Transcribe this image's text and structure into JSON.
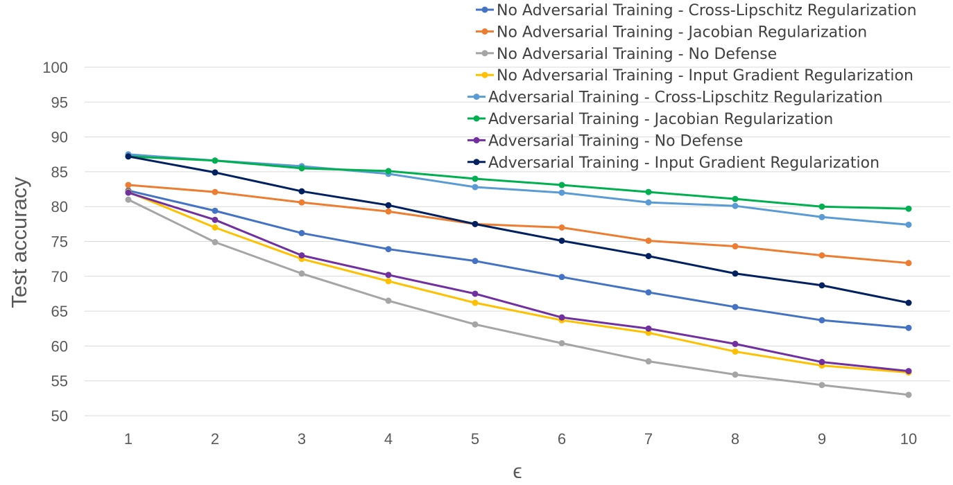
{
  "chart_data": {
    "type": "line",
    "title": "",
    "xlabel": "ϵ",
    "ylabel": "Test accuracy",
    "categories": [
      "1",
      "2",
      "3",
      "4",
      "5",
      "6",
      "7",
      "8",
      "9",
      "10"
    ],
    "y_ticks": [
      "50",
      "55",
      "60",
      "65",
      "70",
      "75",
      "80",
      "85",
      "90",
      "95",
      "100"
    ],
    "ylim": [
      50,
      100
    ],
    "grid": true,
    "legend_position": "top-right",
    "series": [
      {
        "name": "No Adversarial Training - Cross-Lipschitz Regularization",
        "color": "#4472c4",
        "values": [
          82.3,
          79.4,
          76.2,
          73.9,
          72.2,
          69.9,
          67.7,
          65.6,
          63.7,
          62.6
        ]
      },
      {
        "name": "No Adversarial Training - Jacobian Regularization",
        "color": "#ed7d31",
        "values": [
          83.1,
          82.1,
          80.6,
          79.3,
          77.5,
          77.0,
          75.1,
          74.3,
          73.0,
          71.9
        ]
      },
      {
        "name": "No Adversarial Training - No Defense",
        "color": "#a5a5a5",
        "values": [
          81.0,
          74.9,
          70.4,
          66.5,
          63.1,
          60.4,
          57.8,
          55.9,
          54.4,
          53.0
        ]
      },
      {
        "name": "No Adversarial Training - Input Gradient Regularization",
        "color": "#ffc000",
        "values": [
          82.1,
          77.0,
          72.5,
          69.3,
          66.2,
          63.7,
          61.9,
          59.2,
          57.2,
          56.2
        ]
      },
      {
        "name": "Adversarial Training - Cross-Lipschitz Regularization",
        "color": "#5b9bd5",
        "values": [
          87.5,
          86.6,
          85.8,
          84.7,
          82.8,
          82.0,
          80.6,
          80.1,
          78.5,
          77.4
        ]
      },
      {
        "name": "Adversarial Training - Jacobian Regularization",
        "color": "#00b050",
        "values": [
          87.2,
          86.6,
          85.5,
          85.1,
          84.0,
          83.1,
          82.1,
          81.1,
          80.0,
          79.7
        ]
      },
      {
        "name": "Adversarial Training - No Defense",
        "color": "#7030a0",
        "values": [
          82.0,
          78.1,
          73.0,
          70.2,
          67.5,
          64.1,
          62.5,
          60.3,
          57.7,
          56.4
        ]
      },
      {
        "name": "Adversarial Training - Input Gradient Regularization",
        "color": "#002060",
        "values": [
          87.2,
          84.9,
          82.2,
          80.2,
          77.5,
          75.1,
          72.9,
          70.4,
          68.7,
          66.2
        ]
      }
    ]
  }
}
